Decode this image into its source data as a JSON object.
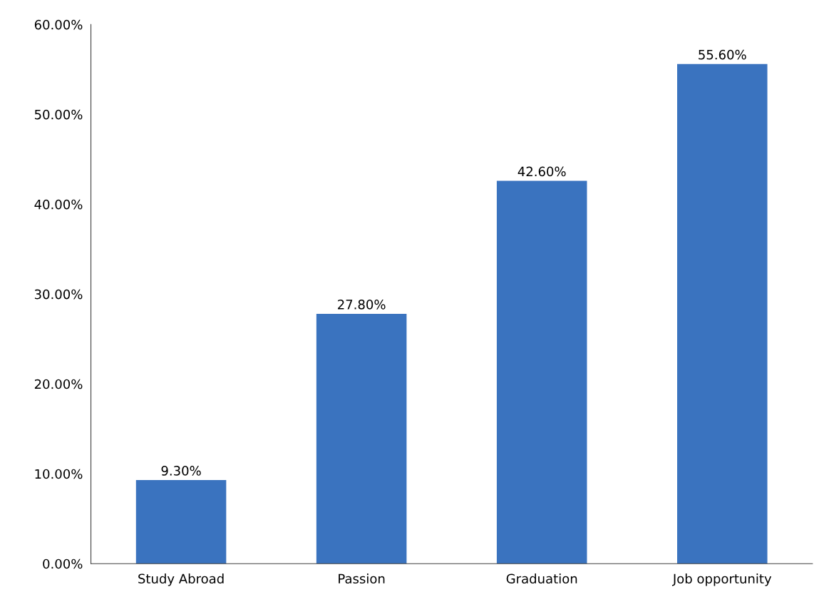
{
  "chart_data": {
    "type": "bar",
    "categories": [
      "Study Abroad",
      "Passion",
      "Graduation",
      "Job opportunity"
    ],
    "values": [
      9.3,
      27.8,
      42.6,
      55.6
    ],
    "value_labels": [
      "9.30%",
      "27.80%",
      "42.60%",
      "55.60%"
    ],
    "color": "#3a73bf",
    "ylim": [
      0,
      60
    ],
    "yticks": [
      {
        "value": 0,
        "label": "0.00%"
      },
      {
        "value": 10,
        "label": "10.00%"
      },
      {
        "value": 20,
        "label": "20.00%"
      },
      {
        "value": 30,
        "label": "30.00%"
      },
      {
        "value": 40,
        "label": "40.00%"
      },
      {
        "value": 50,
        "label": "50.00%"
      },
      {
        "value": 60,
        "label": "60.00%"
      }
    ],
    "grid": false
  }
}
